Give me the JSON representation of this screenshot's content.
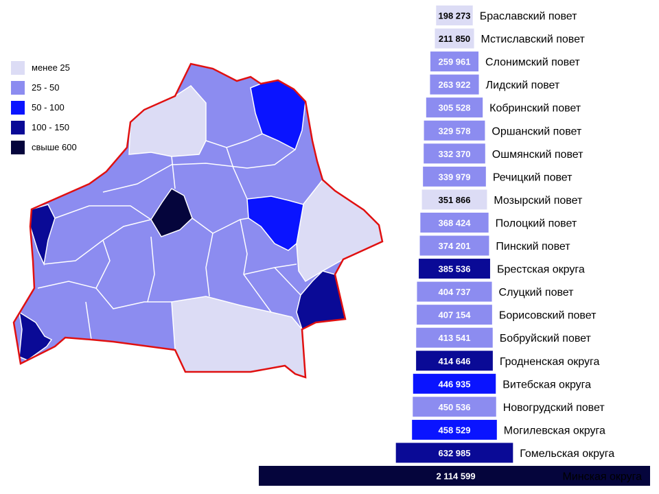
{
  "legend": [
    {
      "label": "менее 25",
      "color": "#dcdcf5"
    },
    {
      "label": "25 - 50",
      "color": "#8c8cf0"
    },
    {
      "label": "50 - 100",
      "color": "#0a14ff"
    },
    {
      "label": "100 - 150",
      "color": "#0a0a96"
    },
    {
      "label": "свыше 600",
      "color": "#05053c"
    }
  ],
  "colors": {
    "border": "#e01010",
    "region_line": "#ffffff"
  },
  "chart_data": {
    "type": "bar",
    "orientation": "horizontal",
    "title": "",
    "categories": [
      "Браславский повет",
      "Мстиславский повет",
      "Слонимский повет",
      "Лидский повет",
      "Кобринский повет",
      "Оршанский повет",
      "Ошмянский повет",
      "Речицкий повет",
      "Мозырский повет",
      "Полоцкий повет",
      "Пинский повет",
      "Брестская округа",
      "Слуцкий повет",
      "Борисовский повет",
      "Бобруйский повет",
      "Гродненская округа",
      "Витебская округа",
      "Новогрудский повет",
      "Могилевская округа",
      "Гомельская округа",
      "Минская округа"
    ],
    "values": [
      198273,
      211850,
      259961,
      263922,
      305528,
      329578,
      332370,
      339979,
      351866,
      368424,
      374201,
      385536,
      404737,
      407154,
      413541,
      414646,
      446935,
      450536,
      458529,
      632985,
      2114599
    ],
    "labels": [
      "198 273",
      "211 850",
      "259 961",
      "263 922",
      "305 528",
      "329 578",
      "332 370",
      "339 979",
      "351 866",
      "368 424",
      "374 201",
      "385 536",
      "404 737",
      "407 154",
      "413 541",
      "414 646",
      "446 935",
      "450 536",
      "458 529",
      "632 985",
      "2 114 599"
    ],
    "bar_colors": [
      "#dcdcf5",
      "#dcdcf5",
      "#8c8cf0",
      "#8c8cf0",
      "#8c8cf0",
      "#8c8cf0",
      "#8c8cf0",
      "#8c8cf0",
      "#dcdcf5",
      "#8c8cf0",
      "#8c8cf0",
      "#0a0a96",
      "#8c8cf0",
      "#8c8cf0",
      "#8c8cf0",
      "#0a0a96",
      "#0a14ff",
      "#8c8cf0",
      "#0a14ff",
      "#0a0a96",
      "#05053c"
    ],
    "grid": false
  }
}
